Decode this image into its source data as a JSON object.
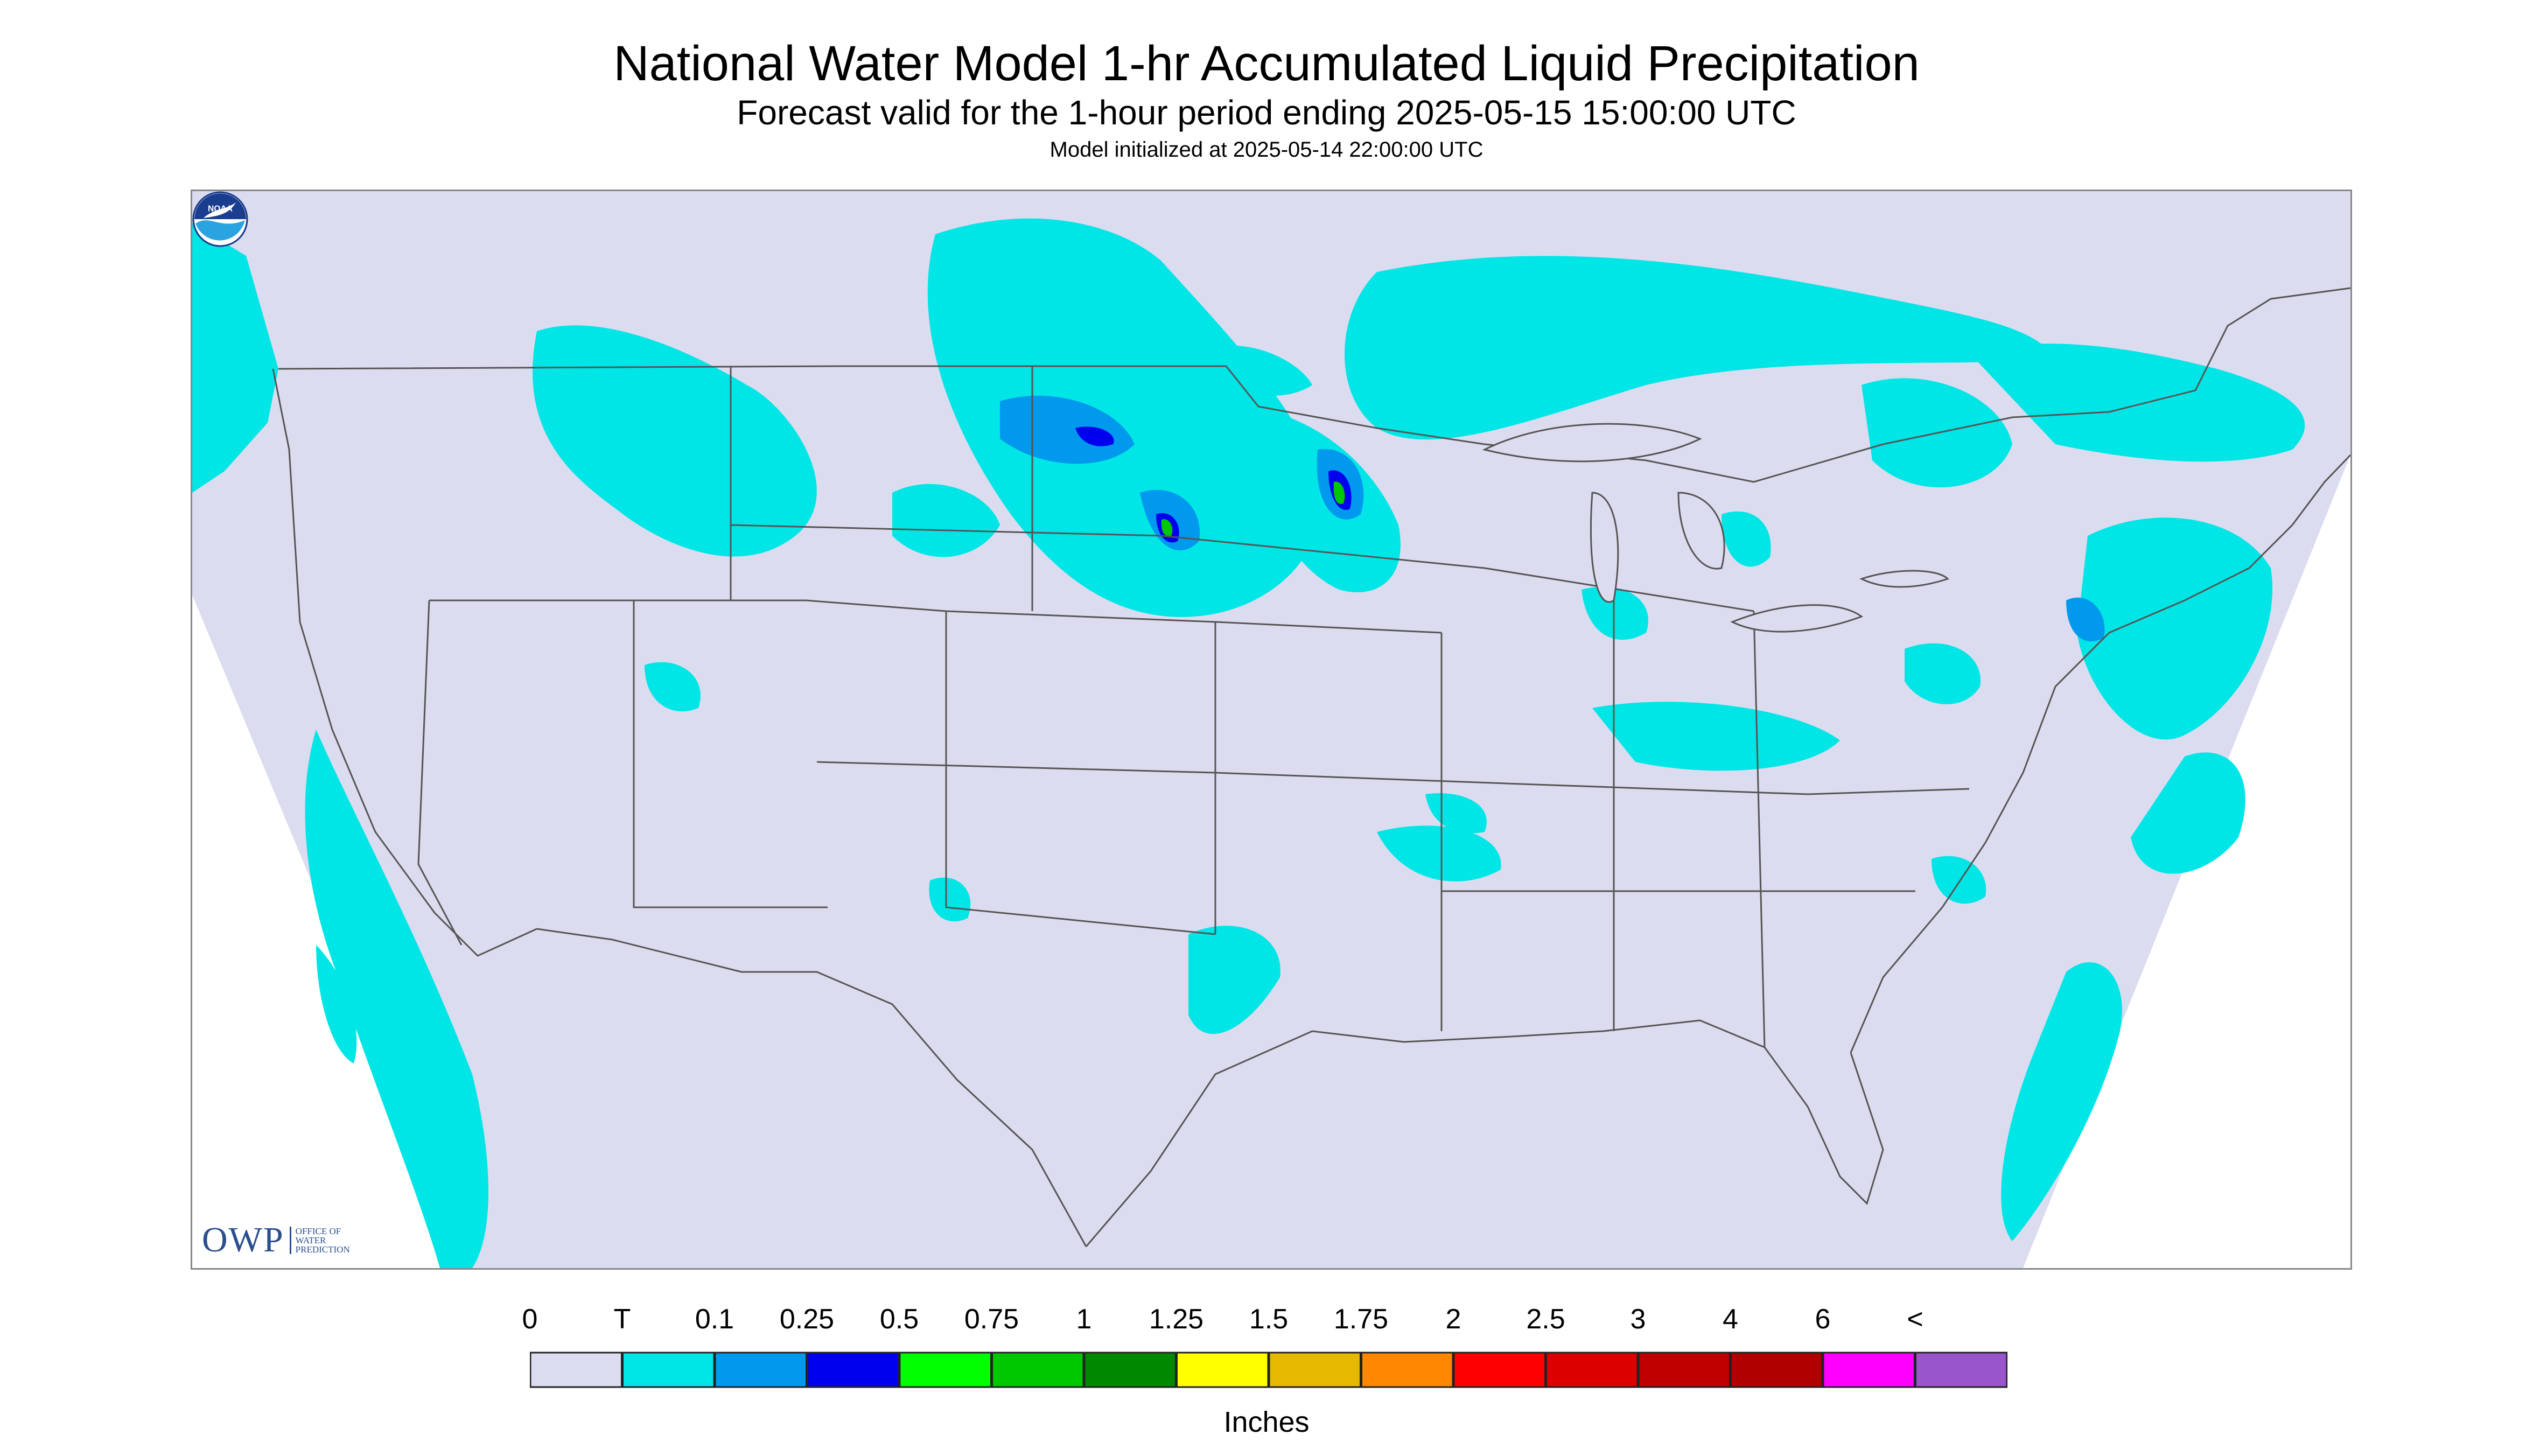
{
  "title": "National Water Model 1-hr Accumulated Liquid Precipitation",
  "subtitle": "Forecast valid for the 1-hour period ending 2025-05-15 15:00:00 UTC",
  "init_text": "Model initialized at 2025-05-14 22:00:00 UTC",
  "logos": {
    "owp_letters": "OWP",
    "owp_line1": "OFFICE OF",
    "owp_line2": "WATER",
    "owp_line3": "PREDICTION",
    "noaa_text": "NOAA"
  },
  "legend": {
    "units": "Inches",
    "labels": [
      "0",
      "T",
      "0.1",
      "0.25",
      "0.5",
      "0.75",
      "1",
      "1.25",
      "1.5",
      "1.75",
      "2",
      "2.5",
      "3",
      "4",
      "6",
      "<"
    ],
    "colors": [
      "#dcdcf0",
      "#00e5e5",
      "#0099ee",
      "#0000ee",
      "#00ff00",
      "#00c800",
      "#008800",
      "#ffff00",
      "#e6b800",
      "#ff8800",
      "#ff0000",
      "#dd0000",
      "#c00000",
      "#b00000",
      "#ff00ff",
      "#9955cc"
    ]
  },
  "map": {
    "domain_fill": "#dcdcf0",
    "boundary_color": "#555555"
  }
}
